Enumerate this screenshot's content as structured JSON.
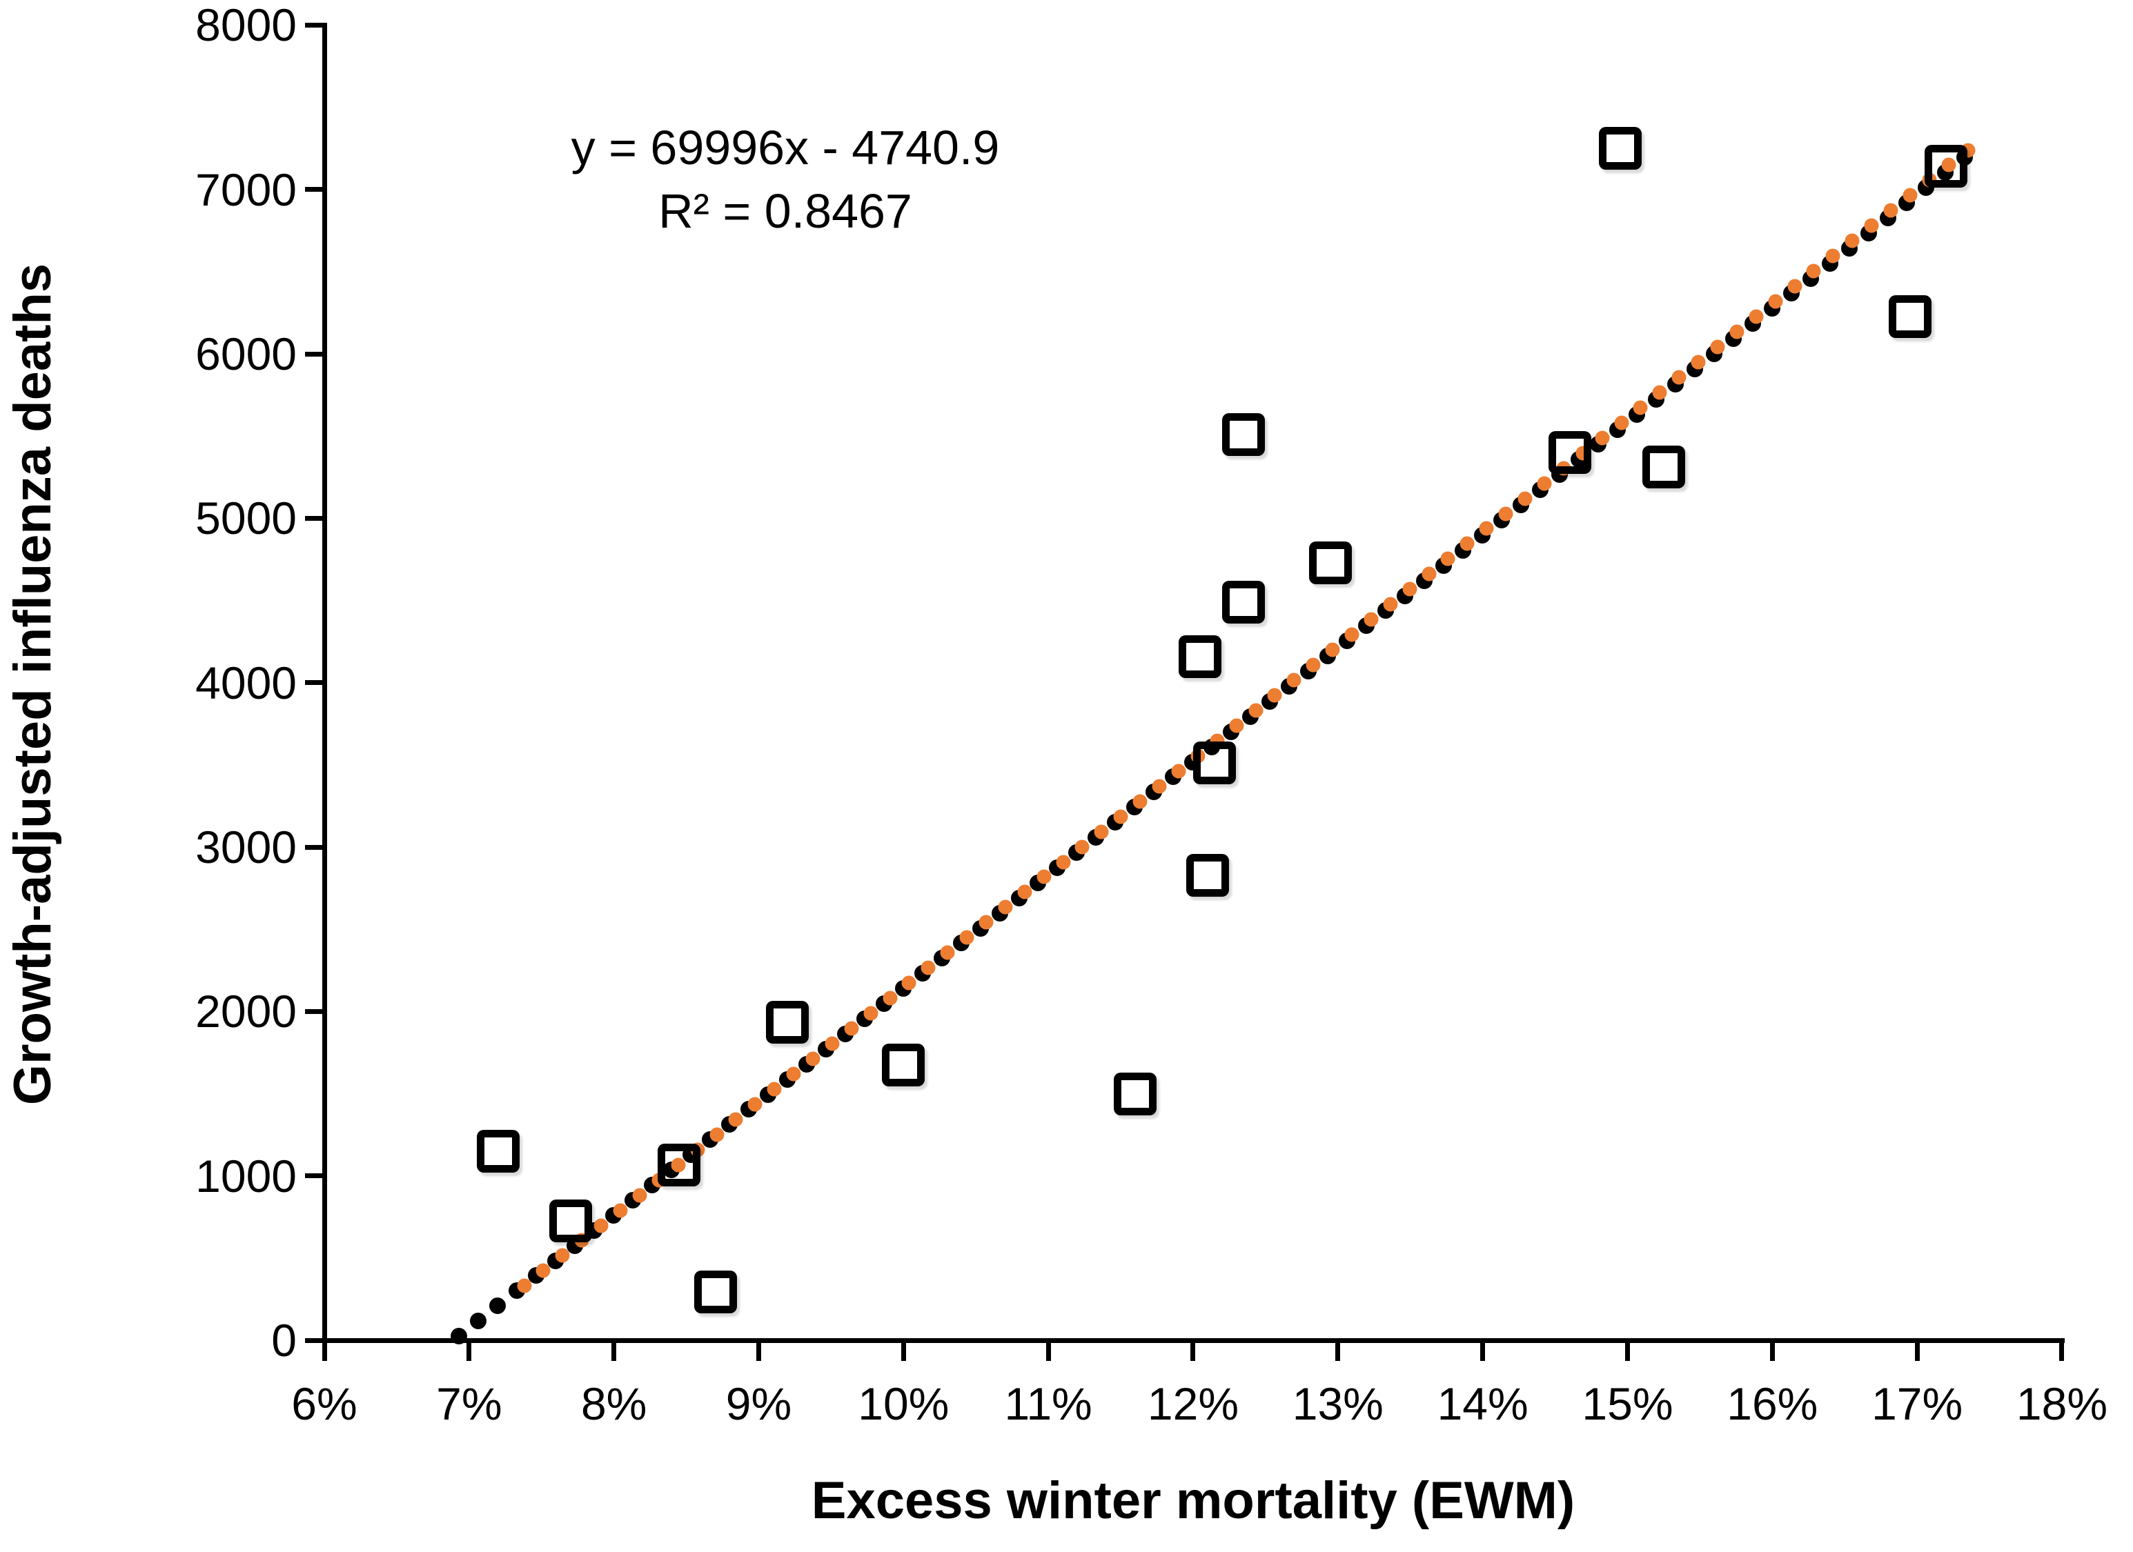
{
  "chart_data": {
    "type": "scatter",
    "title": "",
    "xlabel": "Excess winter mortality (EWM)",
    "ylabel": "Growth-adjusted influenza deaths",
    "equation_label": "y = 69996x - 4740.9",
    "r_squared_label": "R² = 0.8467",
    "x_tick_labels": [
      "6%",
      "7%",
      "8%",
      "9%",
      "10%",
      "11%",
      "12%",
      "13%",
      "14%",
      "15%",
      "16%",
      "17%",
      "18%"
    ],
    "x_tick_values": [
      6,
      7,
      8,
      9,
      10,
      11,
      12,
      13,
      14,
      15,
      16,
      17,
      18
    ],
    "y_tick_labels": [
      "0",
      "1000",
      "2000",
      "3000",
      "4000",
      "5000",
      "6000",
      "7000",
      "8000"
    ],
    "y_tick_values": [
      0,
      1000,
      2000,
      3000,
      4000,
      5000,
      6000,
      7000,
      8000
    ],
    "xlim_pct": [
      6,
      18
    ],
    "ylim": [
      0,
      8000
    ],
    "grid": false,
    "legend": "none",
    "marker": {
      "shape": "open-square",
      "color": "#000000"
    },
    "points": [
      {
        "x_pct": 7.2,
        "y": 1150
      },
      {
        "x_pct": 7.7,
        "y": 725
      },
      {
        "x_pct": 8.45,
        "y": 1065
      },
      {
        "x_pct": 8.7,
        "y": 295
      },
      {
        "x_pct": 9.2,
        "y": 1935
      },
      {
        "x_pct": 10.0,
        "y": 1675
      },
      {
        "x_pct": 11.6,
        "y": 1500
      },
      {
        "x_pct": 12.05,
        "y": 4160
      },
      {
        "x_pct": 12.1,
        "y": 2830
      },
      {
        "x_pct": 12.15,
        "y": 3510
      },
      {
        "x_pct": 12.35,
        "y": 4490
      },
      {
        "x_pct": 12.35,
        "y": 5510
      },
      {
        "x_pct": 12.95,
        "y": 4730
      },
      {
        "x_pct": 14.6,
        "y": 5400
      },
      {
        "x_pct": 14.95,
        "y": 7250
      },
      {
        "x_pct": 15.25,
        "y": 5310
      },
      {
        "x_pct": 16.95,
        "y": 6225
      },
      {
        "x_pct": 17.2,
        "y": 7140
      }
    ],
    "trendlines": [
      {
        "name": "black-dotted-trendline",
        "color": "#000000",
        "x_start_pct": 6.93,
        "y_start": 25,
        "x_end_pct": 17.33,
        "y_end": 7195,
        "dots": 79,
        "dot_size": 24
      },
      {
        "name": "orange-dotted-trendline",
        "color": "#ED7D31",
        "x_start_pct": 7.38,
        "y_start": 330,
        "x_end_pct": 17.35,
        "y_end": 7240,
        "dots": 76,
        "dot_size": 21
      }
    ]
  }
}
